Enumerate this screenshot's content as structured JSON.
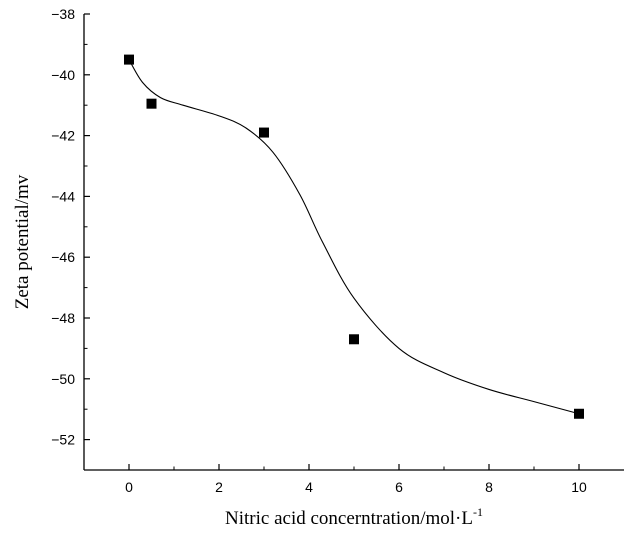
{
  "chart_data": {
    "type": "scatter",
    "title": "",
    "xlabel": "Nitric acid concerntration/mol·L",
    "xlabel_superscript": "-1",
    "ylabel": "Zeta potential/mv",
    "xlim": [
      -1,
      11
    ],
    "ylim": [
      -53,
      -38
    ],
    "x_ticks": [
      0,
      2,
      4,
      6,
      8,
      10
    ],
    "y_ticks": [
      -38,
      -40,
      -42,
      -44,
      -46,
      -48,
      -50,
      -52
    ],
    "x_tick_labels": [
      "0",
      "2",
      "4",
      "6",
      "8",
      "10"
    ],
    "y_tick_labels": [
      "−38",
      "−40",
      "−42",
      "−44",
      "−46",
      "−48",
      "−50",
      "−52"
    ],
    "grid": false,
    "legend": "none",
    "series": [
      {
        "marker": "square",
        "color": "#000000",
        "x": [
          0,
          0.5,
          3,
          5,
          10
        ],
        "y": [
          -39.5,
          -40.95,
          -41.9,
          -48.7,
          -51.15
        ]
      }
    ],
    "fit_curve": {
      "style": "smooth",
      "color": "#000000",
      "x": [
        0,
        0.3,
        0.7,
        1.2,
        2,
        2.6,
        3.2,
        3.8,
        4.3,
        5,
        6,
        7,
        8,
        9,
        10
      ],
      "y": [
        -39.5,
        -40.25,
        -40.75,
        -41.0,
        -41.35,
        -41.75,
        -42.55,
        -43.95,
        -45.5,
        -47.35,
        -49.0,
        -49.8,
        -50.35,
        -50.75,
        -51.15
      ]
    }
  }
}
